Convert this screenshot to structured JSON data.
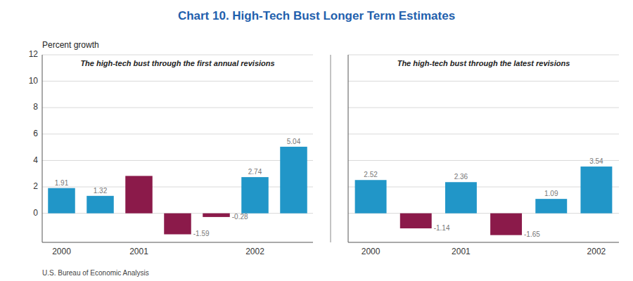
{
  "chart_data": [
    {
      "type": "bar",
      "title": "Chart 10. High-Tech Bust Longer Term Estimates",
      "subtitle": "The high-tech bust through the first annual revisions",
      "ylabel": "Percent growth",
      "footnote": "U.S. Bureau of Economic Analysis",
      "categories": [
        "2000",
        null,
        "2001",
        null,
        null,
        "2002",
        null
      ],
      "values": [
        1.91,
        1.32,
        2.83,
        -1.59,
        -0.28,
        2.74,
        5.04
      ],
      "value_labels": [
        "1.91",
        "1.32",
        null,
        "-1.59",
        "-0.28",
        "2.74",
        "5.04"
      ],
      "colors": [
        "#2196C8",
        "#2196C8",
        "#8B1A4A",
        "#8B1A4A",
        "#8B1A4A",
        "#2196C8",
        "#2196C8"
      ],
      "ylim": [
        -2.2,
        12
      ],
      "yticks": [
        0,
        2,
        4,
        6,
        8,
        10,
        12
      ],
      "grid": true,
      "data_labels": true
    },
    {
      "type": "bar",
      "subtitle": "The high-tech bust through the latest revisions",
      "categories": [
        "2000",
        null,
        "2001",
        null,
        null,
        "2002"
      ],
      "values": [
        2.52,
        -1.14,
        2.36,
        -1.65,
        1.09,
        3.54
      ],
      "value_labels": [
        "2.52",
        "-1.14",
        "2.36",
        "-1.65",
        "1.09",
        "3.54"
      ],
      "colors": [
        "#2196C8",
        "#8B1A4A",
        "#2196C8",
        "#8B1A4A",
        "#2196C8",
        "#2196C8"
      ],
      "ylim": [
        -2.2,
        12
      ],
      "yticks": [
        0,
        2,
        4,
        6,
        8,
        10,
        12
      ],
      "grid": true,
      "data_labels": true,
      "tick_labels": "x"
    }
  ]
}
